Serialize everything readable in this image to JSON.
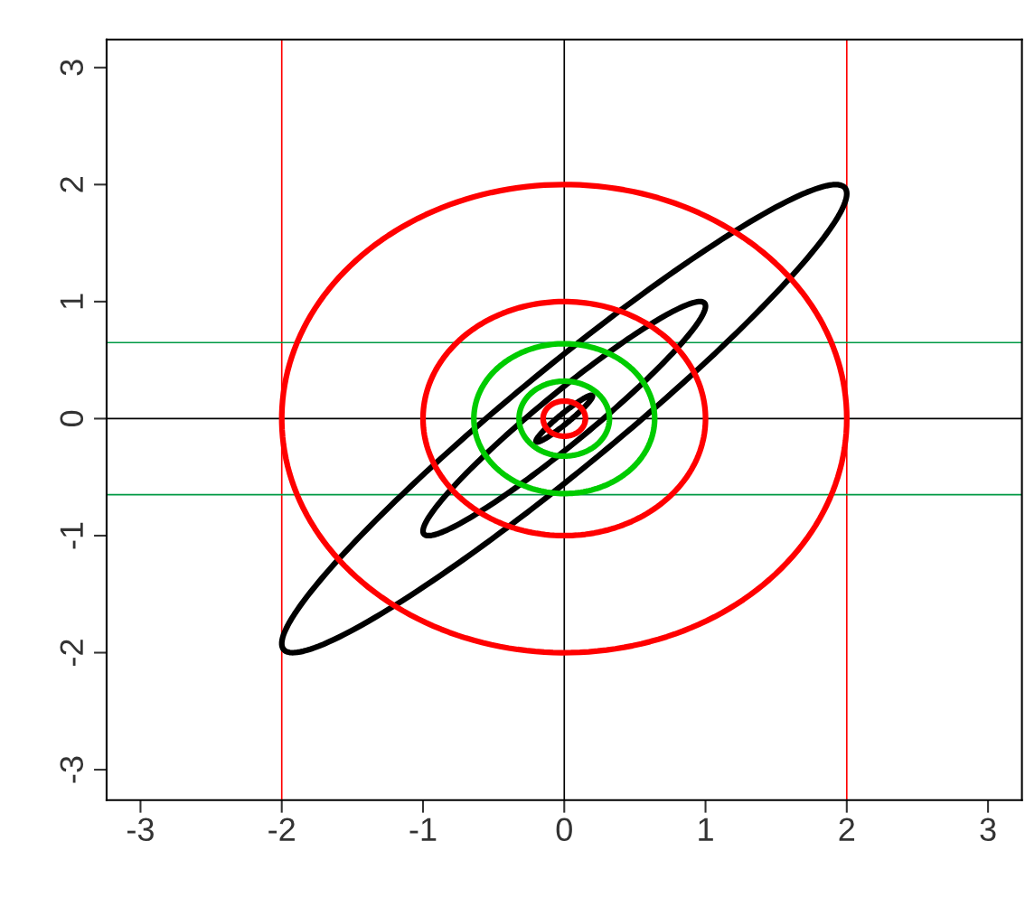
{
  "chart_data": {
    "type": "line",
    "xlim": [
      -3.24,
      3.24
    ],
    "ylim": [
      -3.26,
      3.24
    ],
    "xticks": [
      -3,
      -2,
      -1,
      0,
      1,
      2,
      3
    ],
    "yticks": [
      -3,
      -2,
      -1,
      0,
      1,
      2,
      3
    ],
    "grid": false,
    "legend": false,
    "ref_lines": [
      {
        "axis": "x",
        "value": -2,
        "color": "#ff0000"
      },
      {
        "axis": "x",
        "value": 2,
        "color": "#ff0000"
      },
      {
        "axis": "x",
        "value": 0,
        "color": "#000000"
      },
      {
        "axis": "y",
        "value": 0,
        "color": "#000000"
      },
      {
        "axis": "y",
        "value": 0.65,
        "color": "#009944"
      },
      {
        "axis": "y",
        "value": -0.65,
        "color": "#009944"
      }
    ]
  }
}
